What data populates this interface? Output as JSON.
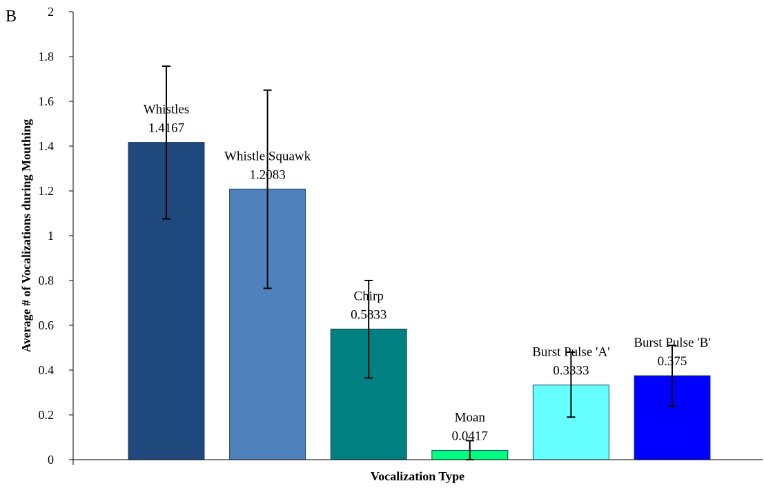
{
  "chart_data": {
    "type": "bar",
    "panel_label": "B",
    "categories": [
      "Whistles",
      "Whistle Squawk",
      "Chirp",
      "Moan",
      "Burst Pulse 'A'",
      "Burst Pulse 'B'"
    ],
    "values": [
      1.4167,
      1.2083,
      0.5833,
      0.0417,
      0.3333,
      0.375
    ],
    "value_labels": [
      "1.4167",
      "1.2083",
      "0.5833",
      "0.0417",
      "0.3333",
      "0.375"
    ],
    "error_low": [
      1.075,
      0.765,
      0.365,
      0.0,
      0.19,
      0.24
    ],
    "error_high": [
      1.757,
      1.65,
      0.8,
      0.085,
      0.48,
      0.51
    ],
    "colors": [
      "#1f497d",
      "#4f81bd",
      "#008080",
      "#00ff80",
      "#66ffff",
      "#0000ff"
    ],
    "xlabel": "Vocalization Type",
    "ylabel": "Average # of Vocalizations during Mouthing",
    "ylim": [
      0,
      2
    ],
    "yticks": [
      "0",
      "0.2",
      "0.4",
      "0.6",
      "0.8",
      "1",
      "1.2",
      "1.4",
      "1.6",
      "1.8",
      "2"
    ],
    "grid": false,
    "legend": "none"
  }
}
